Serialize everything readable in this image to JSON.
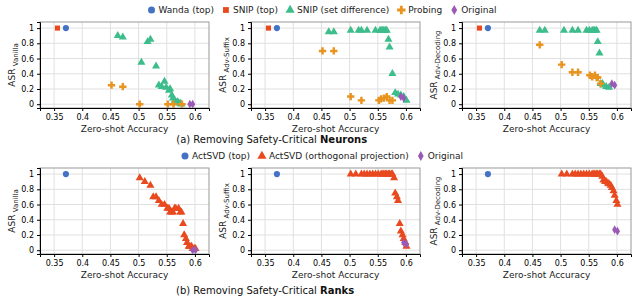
{
  "chart_data": [
    {
      "type": "scatter",
      "xlabel": "Zero-shot Accuracy",
      "ylabel": "ASR Vanilla",
      "xlim": [
        0.325,
        0.625
      ],
      "ylim": [
        -0.05,
        1.08
      ],
      "xticks": [
        0.35,
        0.4,
        0.45,
        0.5,
        0.55,
        0.6
      ],
      "yticks": [
        0,
        0.2,
        0.4,
        0.6,
        0.8,
        1
      ],
      "grid": true,
      "legend": "top",
      "annotations": [
        "(a) Removing Safety-Critical ",
        "Neurons"
      ],
      "series": [
        {
          "name": "Wanda (top)",
          "color": "#4472C4",
          "marker": "circle",
          "x": [
            0.371
          ],
          "values": [
            1.0
          ]
        },
        {
          "name": "SNIP (top)",
          "color": "#E8491E",
          "marker": "square",
          "x": [
            0.356
          ],
          "values": [
            1.0
          ]
        },
        {
          "name": "SNIP (set difference)",
          "color": "#3DBD8C",
          "marker": "triangle",
          "x": [
            0.463,
            0.472,
            0.505,
            0.516,
            0.521,
            0.531,
            0.536,
            0.541,
            0.546,
            0.549,
            0.554,
            0.556,
            0.559,
            0.561,
            0.564,
            0.566,
            0.569,
            0.571,
            0.574,
            0.576
          ],
          "values": [
            0.9,
            0.88,
            0.55,
            0.82,
            0.85,
            0.5,
            0.25,
            0.23,
            0.3,
            0.22,
            0.18,
            0.2,
            0.12,
            0.08,
            0.05,
            0.03,
            0.03,
            0.02,
            0.01,
            0.0
          ]
        },
        {
          "name": "Probing",
          "color": "#E8941E",
          "marker": "plus",
          "x": [
            0.452,
            0.472,
            0.502,
            0.552,
            0.562,
            0.577
          ],
          "values": [
            0.25,
            0.23,
            0.0,
            0.0,
            0.0,
            0.0
          ]
        },
        {
          "name": "Original",
          "color": "#9B59B6",
          "marker": "diamond",
          "x": [
            0.591,
            0.596
          ],
          "values": [
            0.0,
            0.0
          ]
        }
      ]
    },
    {
      "type": "scatter",
      "xlabel": "Zero-shot Accuracy",
      "ylabel": "ASR Adv-Suffix",
      "xlim": [
        0.325,
        0.625
      ],
      "ylim": [
        -0.05,
        1.08
      ],
      "xticks": [
        0.35,
        0.4,
        0.45,
        0.5,
        0.55,
        0.6
      ],
      "yticks": [
        0,
        0.2,
        0.4,
        0.6,
        0.8,
        1
      ],
      "grid": true,
      "series": [
        {
          "name": "Wanda (top)",
          "color": "#4472C4",
          "marker": "circle",
          "x": [
            0.371
          ],
          "values": [
            1.0
          ]
        },
        {
          "name": "SNIP (top)",
          "color": "#E8491E",
          "marker": "square",
          "x": [
            0.356
          ],
          "values": [
            1.0
          ]
        },
        {
          "name": "SNIP (set difference)",
          "color": "#3DBD8C",
          "marker": "triangle",
          "x": [
            0.463,
            0.472,
            0.502,
            0.516,
            0.521,
            0.531,
            0.546,
            0.554,
            0.556,
            0.559,
            0.561,
            0.564,
            0.566,
            0.569,
            0.571,
            0.576,
            0.581,
            0.586,
            0.591,
            0.596,
            0.601
          ],
          "values": [
            0.95,
            0.95,
            0.97,
            0.97,
            0.97,
            0.97,
            0.97,
            0.97,
            0.97,
            0.97,
            0.97,
            0.97,
            0.97,
            0.85,
            0.75,
            0.4,
            0.15,
            0.13,
            0.12,
            0.1,
            0.05
          ]
        },
        {
          "name": "Probing",
          "color": "#E8941E",
          "marker": "plus",
          "x": [
            0.452,
            0.472,
            0.502,
            0.521,
            0.552,
            0.556,
            0.561,
            0.566,
            0.571,
            0.576
          ],
          "values": [
            0.7,
            0.7,
            0.1,
            0.05,
            0.05,
            0.07,
            0.08,
            0.1,
            0.05,
            0.05
          ]
        },
        {
          "name": "Original",
          "color": "#9B59B6",
          "marker": "diamond",
          "x": [
            0.591,
            0.596
          ],
          "values": [
            0.1,
            0.08
          ]
        }
      ]
    },
    {
      "type": "scatter",
      "xlabel": "Zero-shot Accuracy",
      "ylabel": "ASR Adv-Decoding",
      "xlim": [
        0.325,
        0.625
      ],
      "ylim": [
        -0.05,
        1.08
      ],
      "xticks": [
        0.35,
        0.4,
        0.45,
        0.5,
        0.55,
        0.6
      ],
      "yticks": [
        0,
        0.2,
        0.4,
        0.6,
        0.8,
        1
      ],
      "grid": true,
      "series": [
        {
          "name": "Wanda (top)",
          "color": "#4472C4",
          "marker": "circle",
          "x": [
            0.371
          ],
          "values": [
            1.0
          ]
        },
        {
          "name": "SNIP (top)",
          "color": "#E8491E",
          "marker": "square",
          "x": [
            0.356
          ],
          "values": [
            1.0
          ]
        },
        {
          "name": "SNIP (set difference)",
          "color": "#3DBD8C",
          "marker": "triangle",
          "x": [
            0.463,
            0.472,
            0.506,
            0.521,
            0.531,
            0.546,
            0.551,
            0.556,
            0.559,
            0.561,
            0.564,
            0.566,
            0.569,
            0.571,
            0.574,
            0.576,
            0.581,
            0.586
          ],
          "values": [
            0.97,
            0.97,
            0.97,
            0.97,
            0.97,
            0.97,
            0.97,
            0.97,
            0.97,
            0.97,
            0.97,
            0.82,
            0.67,
            0.27,
            0.27,
            0.25,
            0.23,
            0.22
          ]
        },
        {
          "name": "Probing",
          "color": "#E8941E",
          "marker": "plus",
          "x": [
            0.463,
            0.502,
            0.521,
            0.531,
            0.552,
            0.556,
            0.561,
            0.564,
            0.566,
            0.571
          ],
          "values": [
            0.78,
            0.52,
            0.42,
            0.42,
            0.38,
            0.36,
            0.38,
            0.35,
            0.35,
            0.27
          ]
        },
        {
          "name": "Original",
          "color": "#9B59B6",
          "marker": "diamond",
          "x": [
            0.591,
            0.596
          ],
          "values": [
            0.27,
            0.25
          ]
        }
      ]
    },
    {
      "type": "scatter",
      "xlabel": "Zero-shot Accuracy",
      "ylabel": "ASR Vanilla",
      "xlim": [
        0.325,
        0.625
      ],
      "ylim": [
        -0.05,
        1.08
      ],
      "xticks": [
        0.35,
        0.4,
        0.45,
        0.5,
        0.55,
        0.6
      ],
      "yticks": [
        0,
        0.2,
        0.4,
        0.6,
        0.8,
        1
      ],
      "grid": true,
      "legend": "top",
      "annotations": [
        "(b) Removing Safety-Critical ",
        "Ranks"
      ],
      "series": [
        {
          "name": "ActSVD (top)",
          "color": "#4472C4",
          "marker": "circle",
          "x": [
            0.371
          ],
          "values": [
            1.0
          ]
        },
        {
          "name": "ActSVD (orthogonal projection)",
          "color": "#E8491E",
          "marker": "triangle",
          "x": [
            0.502,
            0.511,
            0.521,
            0.526,
            0.531,
            0.536,
            0.541,
            0.546,
            0.551,
            0.554,
            0.556,
            0.559,
            0.561,
            0.564,
            0.566,
            0.571,
            0.574,
            0.576,
            0.579,
            0.581,
            0.584,
            0.586,
            0.589,
            0.591,
            0.594,
            0.596,
            0.599,
            0.601
          ],
          "values": [
            0.95,
            0.9,
            0.85,
            0.7,
            0.7,
            0.65,
            0.6,
            0.6,
            0.55,
            0.55,
            0.5,
            0.5,
            0.5,
            0.55,
            0.55,
            0.55,
            0.5,
            0.5,
            0.35,
            0.2,
            0.15,
            0.1,
            0.05,
            0.05,
            0.05,
            0.02,
            0.02,
            0.02
          ]
        },
        {
          "name": "Original",
          "color": "#9B59B6",
          "marker": "diamond",
          "x": [
            0.596,
            0.601
          ],
          "values": [
            0.0,
            0.0
          ]
        }
      ]
    },
    {
      "type": "scatter",
      "xlabel": "Zero-shot Accuracy",
      "ylabel": "ASR Adv-Suffix",
      "xlim": [
        0.325,
        0.625
      ],
      "ylim": [
        -0.05,
        1.08
      ],
      "xticks": [
        0.35,
        0.4,
        0.45,
        0.5,
        0.55,
        0.6
      ],
      "yticks": [
        0,
        0.2,
        0.4,
        0.6,
        0.8,
        1
      ],
      "grid": true,
      "series": [
        {
          "name": "ActSVD (top)",
          "color": "#4472C4",
          "marker": "circle",
          "x": [
            0.371
          ],
          "values": [
            1.0
          ]
        },
        {
          "name": "ActSVD (orthogonal projection)",
          "color": "#E8491E",
          "marker": "triangle",
          "x": [
            0.502,
            0.511,
            0.521,
            0.526,
            0.531,
            0.536,
            0.541,
            0.546,
            0.551,
            0.556,
            0.559,
            0.561,
            0.564,
            0.566,
            0.569,
            0.571,
            0.574,
            0.576,
            0.579,
            0.581,
            0.584,
            0.586,
            0.589,
            0.591,
            0.594,
            0.596,
            0.599,
            0.601
          ],
          "values": [
            1.0,
            1.0,
            1.0,
            1.0,
            1.0,
            1.0,
            1.0,
            1.0,
            1.0,
            1.0,
            1.0,
            1.0,
            1.0,
            1.0,
            1.0,
            1.0,
            1.0,
            1.0,
            0.95,
            0.75,
            0.7,
            0.65,
            0.35,
            0.25,
            0.2,
            0.15,
            0.1,
            0.05
          ]
        },
        {
          "name": "Original",
          "color": "#9B59B6",
          "marker": "diamond",
          "x": [
            0.596,
            0.601
          ],
          "values": [
            0.1,
            0.08
          ]
        }
      ]
    },
    {
      "type": "scatter",
      "xlabel": "Zero-shot Accuracy",
      "ylabel": "ASR Adv-Decoding",
      "xlim": [
        0.325,
        0.625
      ],
      "ylim": [
        -0.05,
        1.08
      ],
      "xticks": [
        0.35,
        0.4,
        0.45,
        0.5,
        0.55,
        0.6
      ],
      "yticks": [
        0,
        0.2,
        0.4,
        0.6,
        0.8,
        1
      ],
      "grid": true,
      "series": [
        {
          "name": "ActSVD (top)",
          "color": "#4472C4",
          "marker": "circle",
          "x": [
            0.371
          ],
          "values": [
            1.0
          ]
        },
        {
          "name": "ActSVD (orthogonal projection)",
          "color": "#E8491E",
          "marker": "triangle",
          "x": [
            0.502,
            0.511,
            0.521,
            0.526,
            0.531,
            0.536,
            0.541,
            0.546,
            0.551,
            0.556,
            0.559,
            0.561,
            0.564,
            0.566,
            0.569,
            0.571,
            0.574,
            0.576,
            0.579,
            0.581,
            0.584,
            0.586,
            0.589,
            0.591,
            0.594,
            0.596,
            0.599,
            0.601
          ],
          "values": [
            1.0,
            1.0,
            1.0,
            1.0,
            1.0,
            1.0,
            1.0,
            1.0,
            1.0,
            1.0,
            1.0,
            1.0,
            1.0,
            1.0,
            1.0,
            1.0,
            0.97,
            0.92,
            0.9,
            0.9,
            0.88,
            0.87,
            0.85,
            0.82,
            0.78,
            0.72,
            0.65,
            0.6
          ]
        },
        {
          "name": "Original",
          "color": "#9B59B6",
          "marker": "diamond",
          "x": [
            0.596,
            0.601
          ],
          "values": [
            0.27,
            0.25
          ]
        }
      ]
    }
  ]
}
